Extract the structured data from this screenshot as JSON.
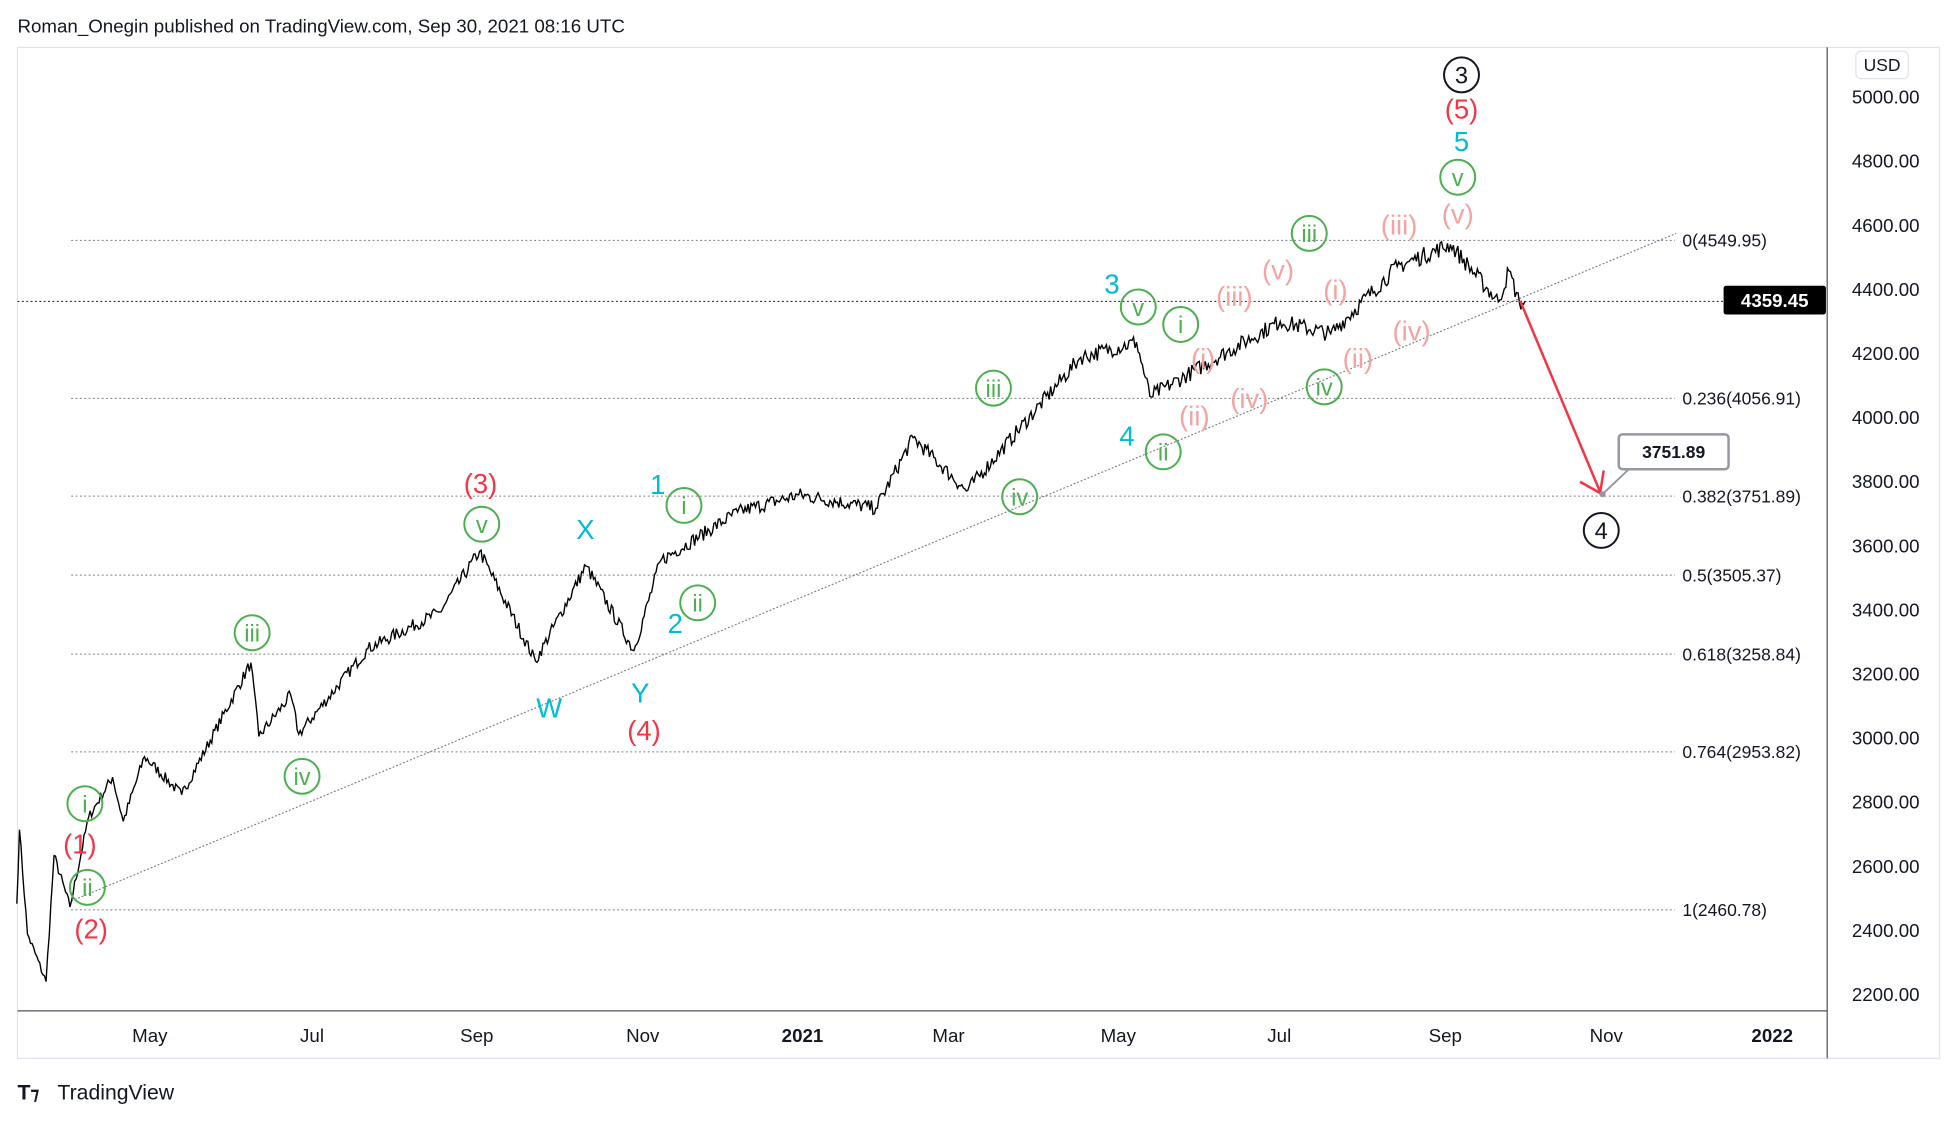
{
  "header": {
    "publisher_line": "Roman_Onegin published on TradingView.com, Sep 30, 2021 08:16 UTC"
  },
  "footer": {
    "brand": "TradingView",
    "logo_text": "TV"
  },
  "price_axis": {
    "currency": "USD",
    "ticks": [
      "5000.00",
      "4800.00",
      "4600.00",
      "4400.00",
      "4200.00",
      "4000.00",
      "3800.00",
      "3600.00",
      "3400.00",
      "3200.00",
      "3000.00",
      "2800.00",
      "2600.00",
      "2400.00",
      "2200.00"
    ],
    "last_price": "4359.45"
  },
  "time_axis": {
    "ticks": [
      "May",
      "Jul",
      "Sep",
      "Nov",
      "2021",
      "Mar",
      "May",
      "Jul",
      "Sep",
      "Nov",
      "2022"
    ]
  },
  "colors": {
    "red": "#f23645",
    "cyan": "#00bcd4",
    "green": "#4caf50",
    "pink": "#f4a3a3",
    "black": "#131722",
    "arrow": "#f23645"
  },
  "chart_data": {
    "type": "line",
    "ylim": [
      2150,
      5080
    ],
    "grid": false,
    "series": [
      {
        "x": [
          "2020-03-12",
          "2020-03-13",
          "2020-03-16",
          "2020-03-23",
          "2020-03-26",
          "2020-04-01",
          "2020-04-08",
          "2020-04-17",
          "2020-04-21",
          "2020-04-29",
          "2020-05-13",
          "2020-06-08",
          "2020-06-11",
          "2020-06-23",
          "2020-06-26",
          "2020-07-22",
          "2020-08-18",
          "2020-09-02",
          "2020-09-23",
          "2020-10-12",
          "2020-10-30",
          "2020-11-09",
          "2020-12-08",
          "2020-12-31",
          "2021-01-29",
          "2021-02-12",
          "2021-03-04",
          "2021-04-16",
          "2021-05-07",
          "2021-05-12",
          "2021-06-30",
          "2021-07-19",
          "2021-08-13",
          "2021-09-02",
          "2021-09-20",
          "2021-09-24",
          "2021-09-28",
          "2021-09-30"
        ],
        "y": [
          2480,
          2711,
          2386,
          2237,
          2630,
          2470,
          2750,
          2875,
          2737,
          2939,
          2820,
          3232,
          3002,
          3131,
          3009,
          3276,
          3390,
          3580,
          3237,
          3534,
          3270,
          3550,
          3702,
          3756,
          3714,
          3934,
          3768,
          4185,
          4232,
          4063,
          4297,
          4258,
          4468,
          4537,
          4358,
          4455,
          4352,
          4359.45
        ]
      }
    ],
    "fibonacci": [
      {
        "label": "0(4549.95)",
        "value": 4549.95
      },
      {
        "label": "0.236(4056.91)",
        "value": 4056.91
      },
      {
        "label": "0.382(3751.89)",
        "value": 3751.89
      },
      {
        "label": "0.5(3505.37)",
        "value": 3505.37
      },
      {
        "label": "0.618(3258.84)",
        "value": 3258.84
      },
      {
        "label": "0.764(2953.82)",
        "value": 2953.82
      },
      {
        "label": "1(2460.78)",
        "value": 2460.78
      }
    ],
    "target_label": "3751.89",
    "wave_labels": [
      {
        "text": "3",
        "style": "circle",
        "color": "black"
      },
      {
        "text": "(5)",
        "style": "plain",
        "color": "red"
      },
      {
        "text": "5",
        "style": "plain",
        "color": "cyan"
      },
      {
        "text": "v",
        "style": "circle",
        "color": "green"
      },
      {
        "text": "(v)",
        "style": "plain",
        "color": "pink"
      },
      {
        "text": "(iii)",
        "style": "plain",
        "color": "pink"
      },
      {
        "text": "iii",
        "style": "circle",
        "color": "green"
      },
      {
        "text": "(v)",
        "style": "plain",
        "color": "pink"
      },
      {
        "text": "(i)",
        "style": "plain",
        "color": "pink"
      },
      {
        "text": "(iii)",
        "style": "plain",
        "color": "pink"
      },
      {
        "text": "3",
        "style": "plain",
        "color": "cyan"
      },
      {
        "text": "v",
        "style": "circle",
        "color": "green"
      },
      {
        "text": "i",
        "style": "circle",
        "color": "green"
      },
      {
        "text": "(i)",
        "style": "plain",
        "color": "pink"
      },
      {
        "text": "(iv)",
        "style": "plain",
        "color": "pink"
      },
      {
        "text": "(ii)",
        "style": "plain",
        "color": "pink"
      },
      {
        "text": "iv",
        "style": "circle",
        "color": "green"
      },
      {
        "text": "(iv)",
        "style": "plain",
        "color": "pink"
      },
      {
        "text": "(ii)",
        "style": "plain",
        "color": "pink"
      },
      {
        "text": "4",
        "style": "plain",
        "color": "cyan"
      },
      {
        "text": "ii",
        "style": "circle",
        "color": "green"
      },
      {
        "text": "iii",
        "style": "circle",
        "color": "green"
      },
      {
        "text": "iv",
        "style": "circle",
        "color": "green"
      },
      {
        "text": "1",
        "style": "plain",
        "color": "cyan"
      },
      {
        "text": "i",
        "style": "circle",
        "color": "green"
      },
      {
        "text": "ii",
        "style": "circle",
        "color": "green"
      },
      {
        "text": "2",
        "style": "plain",
        "color": "cyan"
      },
      {
        "text": "Y",
        "style": "plain",
        "color": "cyan"
      },
      {
        "text": "(4)",
        "style": "plain",
        "color": "red"
      },
      {
        "text": "X",
        "style": "plain",
        "color": "cyan"
      },
      {
        "text": "W",
        "style": "plain",
        "color": "cyan"
      },
      {
        "text": "(3)",
        "style": "plain",
        "color": "red"
      },
      {
        "text": "v",
        "style": "circle",
        "color": "green"
      },
      {
        "text": "iii",
        "style": "circle",
        "color": "green"
      },
      {
        "text": "iv",
        "style": "circle",
        "color": "green"
      },
      {
        "text": "i",
        "style": "circle",
        "color": "green"
      },
      {
        "text": "(1)",
        "style": "plain",
        "color": "red"
      },
      {
        "text": "ii",
        "style": "circle",
        "color": "green"
      },
      {
        "text": "(2)",
        "style": "plain",
        "color": "red"
      },
      {
        "text": "4",
        "style": "circle",
        "color": "black"
      }
    ]
  }
}
